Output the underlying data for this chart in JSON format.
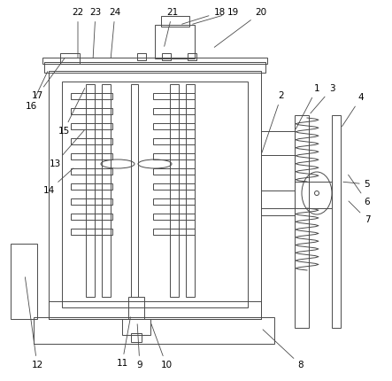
{
  "bg_color": "#ffffff",
  "line_color": "#4a4a4a",
  "lw": 0.7,
  "fig_width": 4.43,
  "fig_height": 4.3,
  "dpi": 100
}
